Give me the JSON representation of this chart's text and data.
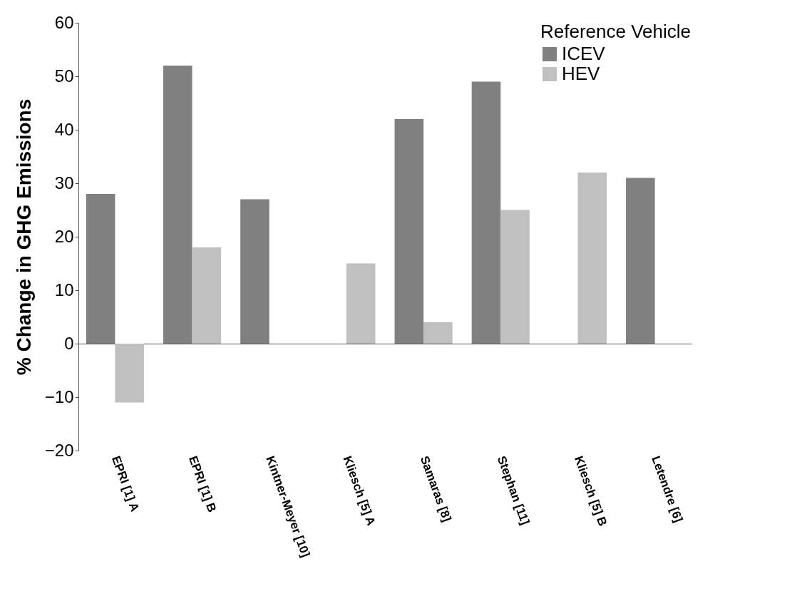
{
  "chart_data": {
    "type": "bar",
    "ylabel": "% Change in GHG Emissions",
    "legend_title": "Reference Vehicle",
    "legend": "top right",
    "categories": [
      "EPRI [1] A",
      "EPRI [1] B",
      "Kintner-Meyer [10]",
      "Kliesch [5] A",
      "Samaras [8]",
      "Stephan [11]",
      "Kliesch [5] B",
      "Letendre [6]"
    ],
    "series": [
      {
        "name": "ICEV",
        "color": "#808080",
        "values": [
          28,
          52,
          27,
          null,
          42,
          49,
          null,
          31
        ]
      },
      {
        "name": "HEV",
        "color": "#c0c0c0",
        "values": [
          -11,
          18,
          null,
          15,
          4,
          25,
          32,
          null
        ]
      }
    ],
    "ylim": [
      -20,
      60
    ],
    "yticks": [
      -20,
      -10,
      0,
      10,
      20,
      30,
      40,
      50,
      60
    ]
  }
}
